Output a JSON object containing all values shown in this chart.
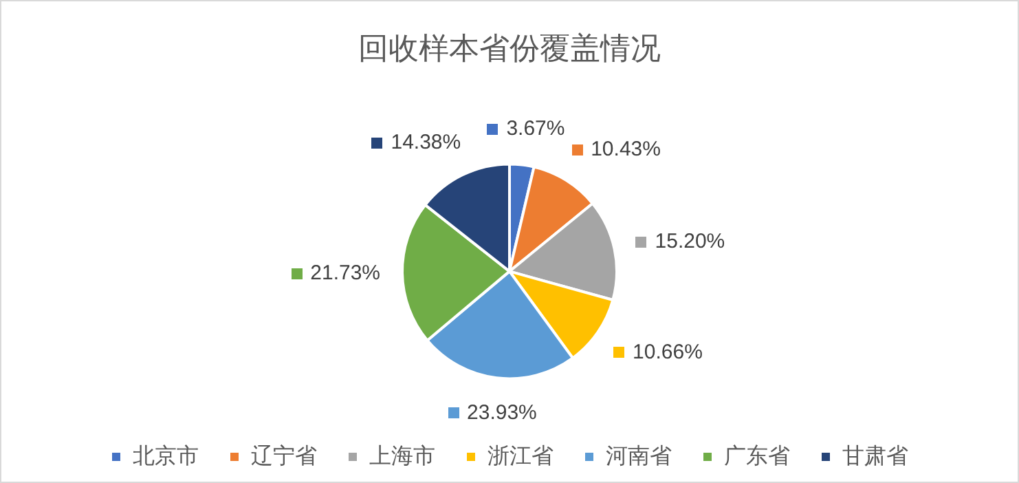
{
  "chart_data": {
    "type": "pie",
    "title": "回收样本省份覆盖情况",
    "categories": [
      "北京市",
      "辽宁省",
      "上海市",
      "浙江省",
      "河南省",
      "广东省",
      "甘肃省"
    ],
    "values": [
      3.67,
      10.43,
      15.2,
      10.66,
      23.93,
      21.73,
      14.38
    ],
    "value_labels": [
      "3.67%",
      "10.43%",
      "15.20%",
      "10.66%",
      "23.93%",
      "21.73%",
      "14.38%"
    ],
    "colors": [
      "#4472c4",
      "#ed7d31",
      "#a5a5a5",
      "#ffc000",
      "#5b9bd5",
      "#70ad47",
      "#264478"
    ],
    "legend": "bottom"
  }
}
